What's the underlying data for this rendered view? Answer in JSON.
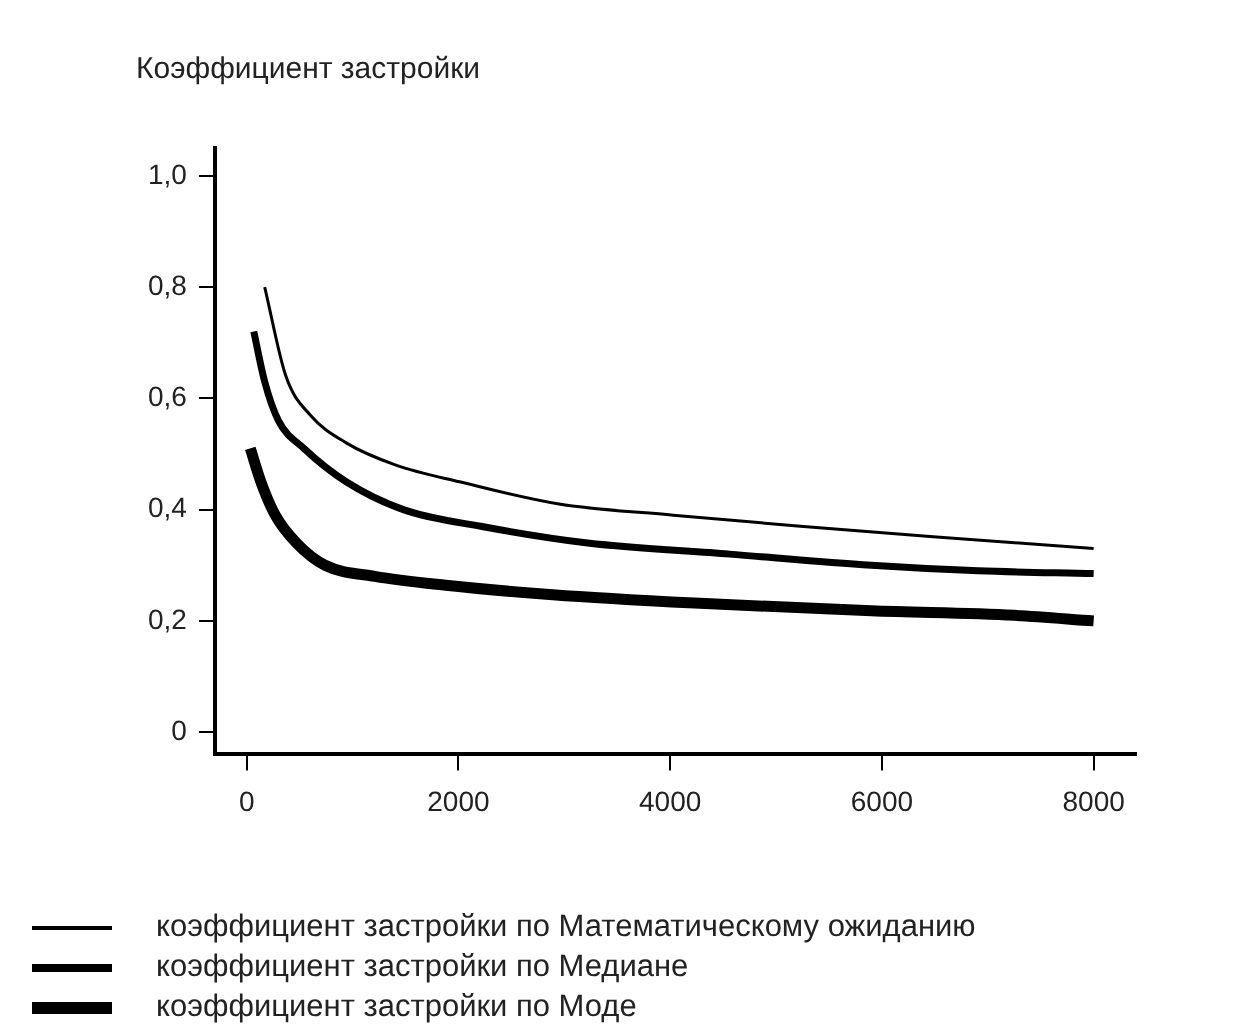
{
  "chart_data": {
    "type": "line",
    "title": "Коэффициент застройки",
    "xlim": [
      -300,
      8400
    ],
    "xticks": [
      0,
      2000,
      4000,
      6000,
      8000
    ],
    "ylim": [
      -0.04,
      1.05
    ],
    "yticks": [
      0,
      {
        "value": 0.2,
        "label": "0,2"
      },
      {
        "value": 0.4,
        "label": "0,4"
      },
      {
        "value": 0.6,
        "label": "0,6"
      },
      {
        "value": 0.8,
        "label": "0,8"
      },
      {
        "value": 1,
        "label": "1,0"
      }
    ],
    "grid": false,
    "legend": "bottom",
    "marker": "none",
    "line_style": "solid",
    "series": [
      {
        "name": "коэффициент застройки по Математическому ожиданию",
        "color": "#000000",
        "x": [
          170,
          370,
          600,
          940,
          1410,
          2010,
          2950,
          4030,
          5230,
          6580,
          8000
        ],
        "values": [
          0.8,
          0.64,
          0.57,
          0.52,
          0.48,
          0.45,
          0.41,
          0.39,
          0.37,
          0.35,
          0.33
        ]
      },
      {
        "name": "коэффициент застройки по Медиане",
        "color": "#000000",
        "x": [
          67,
          170,
          300,
          540,
          940,
          1480,
          2210,
          3220,
          4560,
          5900,
          6910,
          8000
        ],
        "values": [
          0.72,
          0.63,
          0.56,
          0.51,
          0.45,
          0.4,
          0.37,
          0.34,
          0.32,
          0.3,
          0.29,
          0.285
        ]
      },
      {
        "name": "коэффициент застройки по Моде",
        "color": "#000000",
        "x": [
          34,
          134,
          270,
          470,
          740,
          1210,
          1880,
          2890,
          4230,
          5900,
          7250,
          8000
        ],
        "values": [
          0.51,
          0.45,
          0.39,
          0.34,
          0.3,
          0.28,
          0.264,
          0.247,
          0.232,
          0.218,
          0.21,
          0.2
        ]
      }
    ]
  }
}
